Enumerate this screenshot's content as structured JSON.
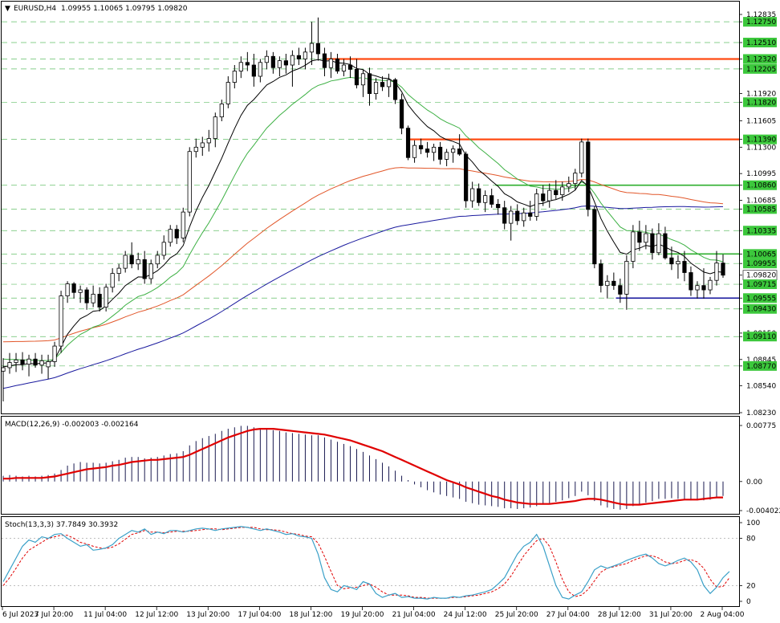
{
  "header": {
    "symbol": "EURUSD,H4",
    "ohlc": "1.09955 1.10065 1.09795 1.09820"
  },
  "colors": {
    "grid": "#3cb043",
    "candle": "#000000",
    "ma_fast": "#000000",
    "ma_green": "#3cb043",
    "ma_orange": "#e2572a",
    "ma_blue": "#1a1a9e",
    "level_orange": "#ff4a12",
    "level_green": "#2eaf2e",
    "level_blue": "#1a1a9e",
    "macd_signal": "#e00000",
    "macd_hist": "#1a1a50",
    "stoch_main": "#3aa0c8",
    "stoch_signal": "#e00000",
    "price_label_bg": "#3cc83c",
    "current_price_bg": "#ffffff"
  },
  "chart_data": {
    "type": "candlestick",
    "price_axis": {
      "range": [
        1.0823,
        1.12835
      ],
      "labels": [
        "1.12835",
        "1.12750",
        "1.12510",
        "1.12320",
        "1.12205",
        "1.11920",
        "1.11820",
        "1.11605",
        "1.11390",
        "1.11300",
        "1.10995",
        "1.10860",
        "1.10685",
        "1.10585",
        "1.10335",
        "1.10065",
        "1.09955",
        "1.09820",
        "1.09715",
        "1.09555",
        "1.09430",
        "1.09150",
        "1.09110",
        "1.08845",
        "1.08770",
        "1.08540",
        "1.08230"
      ],
      "highlighted": [
        "1.12750",
        "1.12510",
        "1.12320",
        "1.12205",
        "1.11820",
        "1.11390",
        "1.10860",
        "1.10585",
        "1.10335",
        "1.10065",
        "1.09955",
        "1.09715",
        "1.09555",
        "1.09430",
        "1.09110",
        "1.08770"
      ],
      "current": "1.09820"
    },
    "levels": [
      {
        "color": "orange",
        "price": 1.1232,
        "from": 0.44,
        "to": 1.0
      },
      {
        "color": "orange",
        "price": 1.1139,
        "from": 0.555,
        "to": 1.0
      },
      {
        "color": "green",
        "price": 1.1086,
        "from": 0.675,
        "to": 1.0
      },
      {
        "color": "green",
        "price": 1.10065,
        "from": 0.91,
        "to": 1.0
      },
      {
        "color": "blue",
        "price": 1.09555,
        "from": 0.84,
        "to": 1.0
      }
    ],
    "candles": [
      [
        1.0871,
        1.0886,
        1.0836,
        1.0875
      ],
      [
        1.0875,
        1.0892,
        1.0868,
        1.0881
      ],
      [
        1.0881,
        1.0892,
        1.087,
        1.0884
      ],
      [
        1.0884,
        1.0893,
        1.0872,
        1.0879
      ],
      [
        1.0879,
        1.089,
        1.0865,
        1.0885
      ],
      [
        1.0885,
        1.0892,
        1.0875,
        1.0878
      ],
      [
        1.0878,
        1.089,
        1.0868,
        1.0883
      ],
      [
        1.0876,
        1.089,
        1.0862,
        1.0882
      ],
      [
        1.0882,
        1.0905,
        1.0876,
        1.09
      ],
      [
        1.09,
        1.0964,
        1.0892,
        1.0958
      ],
      [
        1.0958,
        1.0975,
        1.095,
        1.0972
      ],
      [
        1.0972,
        1.0974,
        1.0955,
        1.0962
      ],
      [
        1.0962,
        1.097,
        1.095,
        1.0965
      ],
      [
        1.0965,
        1.0968,
        1.0942,
        1.095
      ],
      [
        1.095,
        1.097,
        1.0945,
        1.096
      ],
      [
        1.096,
        1.0968,
        1.094,
        1.0945
      ],
      [
        1.0945,
        1.0972,
        1.094,
        1.0968
      ],
      [
        1.0968,
        1.099,
        1.0962,
        1.0984
      ],
      [
        1.0984,
        1.0995,
        1.0975,
        1.099
      ],
      [
        1.099,
        1.101,
        1.0985,
        1.1005
      ],
      [
        1.1005,
        1.102,
        1.099,
        1.0995
      ],
      [
        1.0995,
        1.1008,
        1.0988,
        1.1
      ],
      [
        1.1,
        1.101,
        1.0972,
        1.0978
      ],
      [
        1.0978,
        1.1,
        1.0972,
        1.0995
      ],
      [
        1.0995,
        1.101,
        1.099,
        1.1005
      ],
      [
        1.1005,
        1.1028,
        1.1,
        1.102
      ],
      [
        1.102,
        1.104,
        1.1015,
        1.1035
      ],
      [
        1.1035,
        1.104,
        1.1018,
        1.1025
      ],
      [
        1.1025,
        1.106,
        1.102,
        1.1055
      ],
      [
        1.1055,
        1.113,
        1.105,
        1.1125
      ],
      [
        1.1125,
        1.114,
        1.1118,
        1.113
      ],
      [
        1.113,
        1.1142,
        1.112,
        1.1135
      ],
      [
        1.1135,
        1.115,
        1.1125,
        1.114
      ],
      [
        1.114,
        1.117,
        1.113,
        1.1165
      ],
      [
        1.1165,
        1.1185,
        1.116,
        1.118
      ],
      [
        1.118,
        1.1212,
        1.1175,
        1.1205
      ],
      [
        1.1205,
        1.1225,
        1.1198,
        1.1218
      ],
      [
        1.1218,
        1.1235,
        1.121,
        1.1228
      ],
      [
        1.1228,
        1.124,
        1.1218,
        1.1225
      ],
      [
        1.1225,
        1.1238,
        1.12,
        1.1212
      ],
      [
        1.1212,
        1.1232,
        1.1205,
        1.1228
      ],
      [
        1.1228,
        1.1242,
        1.122,
        1.1235
      ],
      [
        1.1235,
        1.124,
        1.1215,
        1.1222
      ],
      [
        1.1222,
        1.1235,
        1.1212,
        1.123
      ],
      [
        1.123,
        1.1238,
        1.1215,
        1.1225
      ],
      [
        1.1225,
        1.1242,
        1.12,
        1.1236
      ],
      [
        1.1236,
        1.1245,
        1.1225,
        1.1232
      ],
      [
        1.1232,
        1.1245,
        1.122,
        1.124
      ],
      [
        1.124,
        1.1275,
        1.1225,
        1.125
      ],
      [
        1.125,
        1.128,
        1.123,
        1.1238
      ],
      [
        1.1238,
        1.1245,
        1.1212,
        1.1222
      ],
      [
        1.1222,
        1.124,
        1.121,
        1.1232
      ],
      [
        1.1232,
        1.1238,
        1.1215,
        1.1218
      ],
      [
        1.1218,
        1.1232,
        1.1212,
        1.1225
      ],
      [
        1.1225,
        1.1235,
        1.121,
        1.122
      ],
      [
        1.122,
        1.1232,
        1.1198,
        1.1202
      ],
      [
        1.1202,
        1.122,
        1.1188,
        1.1215
      ],
      [
        1.1215,
        1.1222,
        1.1178,
        1.1192
      ],
      [
        1.1192,
        1.121,
        1.1185,
        1.1205
      ],
      [
        1.1205,
        1.1212,
        1.1195,
        1.12
      ],
      [
        1.12,
        1.1215,
        1.1188,
        1.1208
      ],
      [
        1.1208,
        1.121,
        1.118,
        1.1185
      ],
      [
        1.1185,
        1.1192,
        1.1145,
        1.1152
      ],
      [
        1.1152,
        1.1155,
        1.1115,
        1.1118
      ],
      [
        1.1118,
        1.1138,
        1.1112,
        1.1132
      ],
      [
        1.1132,
        1.114,
        1.1122,
        1.1128
      ],
      [
        1.1128,
        1.1136,
        1.1118,
        1.1124
      ],
      [
        1.1124,
        1.1134,
        1.1114,
        1.113
      ],
      [
        1.113,
        1.1136,
        1.111,
        1.1116
      ],
      [
        1.1116,
        1.1128,
        1.1108,
        1.1124
      ],
      [
        1.1124,
        1.1132,
        1.1112,
        1.1128
      ],
      [
        1.1128,
        1.1145,
        1.112,
        1.1122
      ],
      [
        1.1122,
        1.1125,
        1.106,
        1.1068
      ],
      [
        1.1068,
        1.109,
        1.106,
        1.1082
      ],
      [
        1.1082,
        1.1088,
        1.1062,
        1.1066
      ],
      [
        1.1066,
        1.108,
        1.1055,
        1.1074
      ],
      [
        1.1074,
        1.1082,
        1.106,
        1.1064
      ],
      [
        1.1064,
        1.107,
        1.1052,
        1.106
      ],
      [
        1.106,
        1.1068,
        1.1035,
        1.1042
      ],
      [
        1.1042,
        1.1062,
        1.1022,
        1.1056
      ],
      [
        1.1056,
        1.1064,
        1.104,
        1.1045
      ],
      [
        1.1045,
        1.106,
        1.1038,
        1.1054
      ],
      [
        1.1054,
        1.1068,
        1.1045,
        1.105
      ],
      [
        1.105,
        1.1082,
        1.1045,
        1.1076
      ],
      [
        1.1076,
        1.1086,
        1.1062,
        1.1068
      ],
      [
        1.1068,
        1.1088,
        1.106,
        1.108
      ],
      [
        1.108,
        1.1092,
        1.107,
        1.1075
      ],
      [
        1.1075,
        1.109,
        1.1068,
        1.1084
      ],
      [
        1.1084,
        1.1096,
        1.1078,
        1.1088
      ],
      [
        1.1088,
        1.1105,
        1.108,
        1.11
      ],
      [
        1.11,
        1.114,
        1.1095,
        1.1136
      ],
      [
        1.1136,
        1.114,
        1.105,
        1.1058
      ],
      [
        1.1058,
        1.1062,
        1.099,
        1.0995
      ],
      [
        1.0995,
        1.1,
        1.0962,
        1.097
      ],
      [
        1.097,
        1.0982,
        1.0955,
        1.0975
      ],
      [
        1.0975,
        1.0985,
        1.0965,
        1.097
      ],
      [
        1.097,
        1.0978,
        1.095,
        1.096
      ],
      [
        1.096,
        1.1005,
        1.0942,
        1.0998
      ],
      [
        1.0998,
        1.104,
        1.099,
        1.1032
      ],
      [
        1.1032,
        1.1045,
        1.101,
        1.102
      ],
      [
        1.102,
        1.104,
        1.1012,
        1.103
      ],
      [
        1.103,
        1.1036,
        1.1,
        1.1008
      ],
      [
        1.1008,
        1.1042,
        1.1005,
        1.103
      ],
      [
        1.103,
        1.1038,
        1.1,
        1.1002
      ],
      [
        1.1002,
        1.1015,
        1.0988,
        1.0995
      ],
      [
        1.0995,
        1.1005,
        1.0978,
        1.0998
      ],
      [
        1.0998,
        1.101,
        1.0975,
        1.0985
      ],
      [
        1.0985,
        1.0992,
        1.0958,
        1.0965
      ],
      [
        1.0965,
        1.0975,
        1.0955,
        1.097
      ],
      [
        1.097,
        1.099,
        1.0955,
        1.0965
      ],
      [
        1.0965,
        1.098,
        1.096,
        1.0976
      ],
      [
        1.0976,
        1.101,
        1.097,
        1.0996
      ],
      [
        1.0996,
        1.1006,
        1.0979,
        1.0982
      ]
    ],
    "macd": {
      "label": "MACD(12,26,9) -0.002003 -0.002164",
      "range": [
        -0.004022,
        0.00775
      ],
      "labels": [
        "0.00775",
        "0.00",
        "-0.004022"
      ],
      "hist": [
        0.0008,
        0.0009,
        0.0008,
        0.0007,
        0.0008,
        0.0007,
        0.0008,
        0.0009,
        0.0011,
        0.0016,
        0.0022,
        0.0025,
        0.0027,
        0.0026,
        0.0026,
        0.0025,
        0.0026,
        0.0028,
        0.003,
        0.0033,
        0.0034,
        0.0034,
        0.0032,
        0.0033,
        0.0034,
        0.0036,
        0.0038,
        0.0039,
        0.0042,
        0.005,
        0.0056,
        0.006,
        0.0063,
        0.0066,
        0.007,
        0.0073,
        0.0075,
        0.0077,
        0.0077,
        0.0075,
        0.0074,
        0.0073,
        0.0071,
        0.007,
        0.0068,
        0.0067,
        0.0066,
        0.0065,
        0.0064,
        0.0064,
        0.0061,
        0.0058,
        0.0055,
        0.0052,
        0.0049,
        0.0045,
        0.0041,
        0.0036,
        0.0031,
        0.0026,
        0.0021,
        0.0015,
        0.0008,
        0.0002,
        -0.0004,
        -0.0008,
        -0.0012,
        -0.0015,
        -0.0018,
        -0.002,
        -0.0022,
        -0.0024,
        -0.0028,
        -0.003,
        -0.0032,
        -0.0033,
        -0.0034,
        -0.0035,
        -0.0037,
        -0.0037,
        -0.0038,
        -0.0037,
        -0.0036,
        -0.0034,
        -0.0032,
        -0.003,
        -0.0028,
        -0.0026,
        -0.0023,
        -0.002,
        -0.0014,
        -0.0019,
        -0.0027,
        -0.0033,
        -0.0036,
        -0.0038,
        -0.0039,
        -0.0038,
        -0.0034,
        -0.0031,
        -0.0029,
        -0.0027,
        -0.0024,
        -0.0024,
        -0.0023,
        -0.0024,
        -0.0025,
        -0.0026,
        -0.0026,
        -0.0026,
        -0.0025,
        -0.0021,
        -0.002
      ],
      "signal": [
        0.0004,
        0.0004,
        0.0005,
        0.0005,
        0.0005,
        0.0005,
        0.0005,
        0.0006,
        0.0007,
        0.0009,
        0.0011,
        0.0013,
        0.0015,
        0.0017,
        0.0018,
        0.0019,
        0.002,
        0.0022,
        0.0023,
        0.0025,
        0.0027,
        0.0028,
        0.0029,
        0.003,
        0.003,
        0.0031,
        0.0032,
        0.0033,
        0.0034,
        0.0037,
        0.0041,
        0.0045,
        0.0049,
        0.0053,
        0.0057,
        0.0061,
        0.0064,
        0.0067,
        0.007,
        0.0072,
        0.0073,
        0.0073,
        0.0073,
        0.0072,
        0.0071,
        0.007,
        0.0069,
        0.0068,
        0.0067,
        0.0066,
        0.0065,
        0.0063,
        0.0061,
        0.0059,
        0.0057,
        0.0054,
        0.0051,
        0.0048,
        0.0045,
        0.0042,
        0.0038,
        0.0034,
        0.003,
        0.0026,
        0.0022,
        0.0018,
        0.0014,
        0.001,
        0.0006,
        0.0002,
        -0.0001,
        -0.0004,
        -0.0008,
        -0.0011,
        -0.0014,
        -0.0017,
        -0.002,
        -0.0022,
        -0.0025,
        -0.0027,
        -0.0029,
        -0.003,
        -0.0031,
        -0.0031,
        -0.0031,
        -0.0031,
        -0.003,
        -0.0029,
        -0.0028,
        -0.0027,
        -0.0025,
        -0.0024,
        -0.0024,
        -0.0025,
        -0.0027,
        -0.0029,
        -0.0031,
        -0.0032,
        -0.0032,
        -0.0032,
        -0.0031,
        -0.003,
        -0.0029,
        -0.0028,
        -0.0027,
        -0.0026,
        -0.0025,
        -0.0025,
        -0.0025,
        -0.0024,
        -0.0023,
        -0.0022,
        -0.0022
      ]
    },
    "stoch": {
      "label": "Stoch(13,3,3) 37.7849 30.3932",
      "range": [
        0,
        100
      ],
      "labels": [
        "100",
        "80",
        "20",
        "0"
      ],
      "main": [
        25,
        40,
        55,
        70,
        78,
        75,
        82,
        80,
        85,
        86,
        80,
        75,
        70,
        72,
        65,
        66,
        68,
        72,
        80,
        85,
        90,
        88,
        92,
        85,
        88,
        86,
        90,
        90,
        88,
        90,
        92,
        93,
        92,
        90,
        92,
        93,
        94,
        95,
        94,
        92,
        90,
        92,
        90,
        88,
        85,
        86,
        83,
        82,
        80,
        60,
        30,
        15,
        12,
        20,
        18,
        15,
        25,
        22,
        10,
        5,
        8,
        10,
        5,
        6,
        4,
        4,
        3,
        5,
        4,
        4,
        6,
        5,
        7,
        8,
        10,
        12,
        15,
        22,
        30,
        45,
        60,
        70,
        75,
        85,
        70,
        45,
        20,
        5,
        3,
        8,
        12,
        25,
        40,
        45,
        42,
        45,
        48,
        52,
        55,
        58,
        60,
        55,
        48,
        45,
        48,
        52,
        55,
        50,
        40,
        20,
        10,
        18,
        30,
        38
      ],
      "signal": [
        20,
        30,
        42,
        55,
        65,
        70,
        75,
        80,
        82,
        84,
        84,
        80,
        75,
        73,
        70,
        68,
        67,
        69,
        73,
        79,
        85,
        87,
        90,
        88,
        88,
        87,
        88,
        89,
        89,
        89,
        90,
        91,
        92,
        92,
        91,
        92,
        93,
        94,
        94,
        94,
        92,
        91,
        91,
        90,
        88,
        86,
        85,
        83,
        82,
        74,
        57,
        38,
        20,
        16,
        17,
        18,
        20,
        22,
        18,
        12,
        8,
        8,
        8,
        7,
        5,
        5,
        4,
        4,
        4,
        4,
        5,
        5,
        6,
        7,
        8,
        10,
        12,
        16,
        22,
        32,
        45,
        58,
        68,
        77,
        80,
        70,
        50,
        28,
        12,
        6,
        8,
        15,
        26,
        37,
        42,
        44,
        46,
        48,
        52,
        55,
        58,
        58,
        55,
        50,
        48,
        49,
        52,
        53,
        50,
        42,
        28,
        18,
        19,
        30
      ]
    },
    "time_labels": [
      "6 Jul 2023",
      "7 Jul 20:00",
      "11 Jul 04:00",
      "12 Jul 12:00",
      "13 Jul 20:00",
      "17 Jul 04:00",
      "18 Jul 12:00",
      "19 Jul 20:00",
      "21 Jul 04:00",
      "24 Jul 12:00",
      "25 Jul 20:00",
      "27 Jul 04:00",
      "28 Jul 12:00",
      "31 Jul 20:00",
      "2 Aug 04:00"
    ]
  }
}
